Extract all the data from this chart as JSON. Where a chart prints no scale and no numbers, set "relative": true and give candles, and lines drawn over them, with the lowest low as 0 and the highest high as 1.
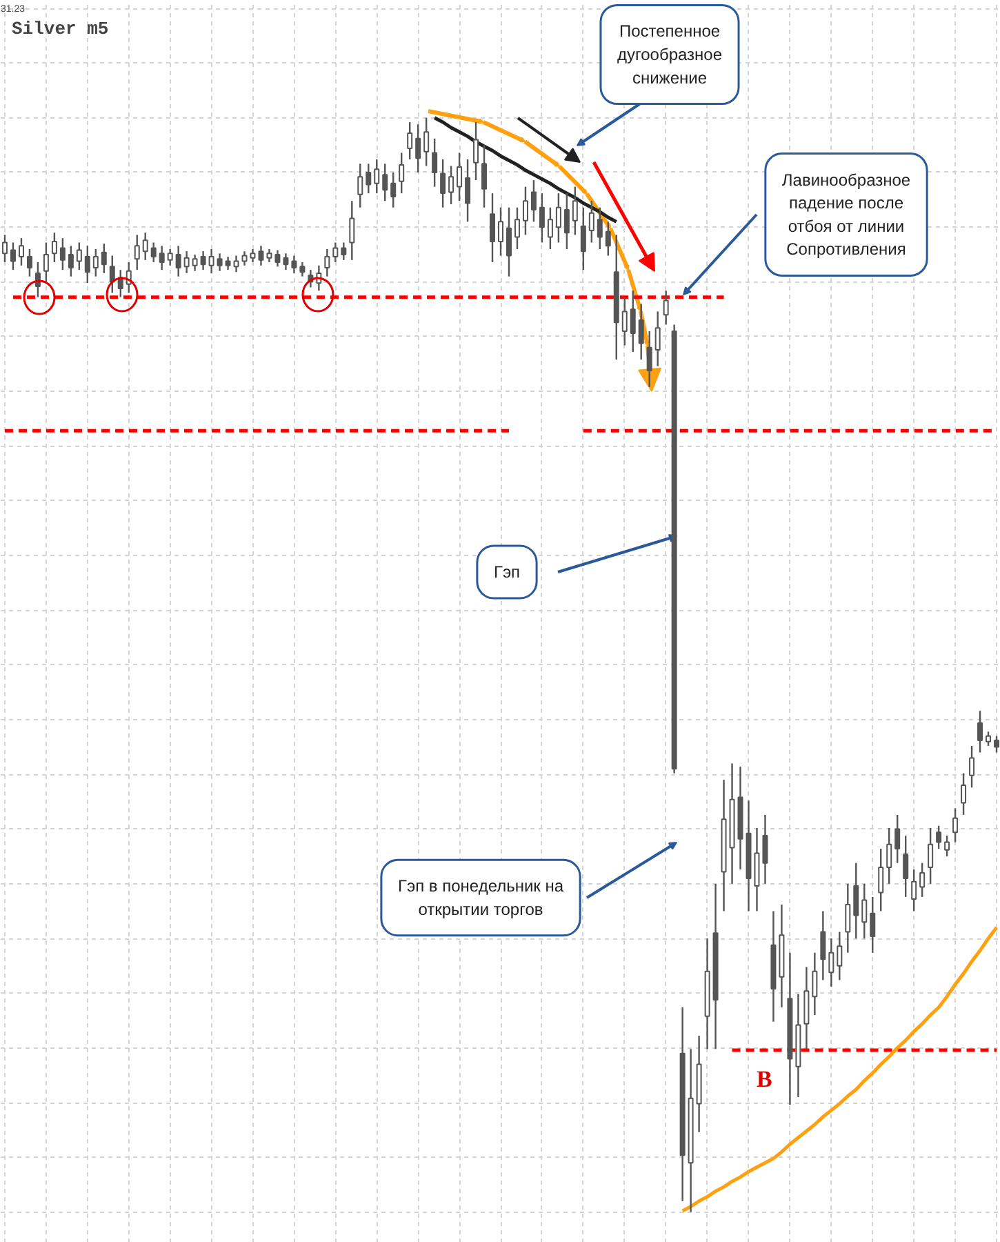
{
  "chart_data": {
    "type": "candlestick",
    "title": "Silver m5",
    "relative": true,
    "grid": true,
    "color": "#555555",
    "annotations": [
      "31.23",
      "Постепенное дугообразное снижение",
      "Лавинообразное падение после отбоя от линии Сопротивления",
      "Гэп",
      "Гэп в понедельник на открытии торгов",
      "B"
    ],
    "categories": [
      null,
      null,
      null,
      null,
      null,
      null,
      null,
      null,
      null,
      null,
      null,
      null,
      null,
      null,
      null,
      null,
      null,
      null,
      null,
      null,
      null,
      null,
      null,
      null,
      null,
      null,
      null,
      null,
      null,
      null,
      null,
      null,
      null,
      null,
      null,
      null,
      null,
      null,
      null,
      null,
      null,
      null,
      null,
      null,
      null,
      null,
      null,
      null,
      null,
      null,
      null,
      null,
      null,
      null,
      null,
      null,
      null,
      null,
      null,
      null,
      null,
      null,
      null,
      null,
      null,
      null,
      null,
      null,
      null,
      null,
      null,
      null,
      null,
      null,
      null,
      null,
      null,
      null,
      null,
      null,
      null,
      null,
      null,
      null,
      null,
      null,
      null,
      null,
      null,
      null,
      null,
      null,
      null,
      null,
      null,
      null,
      null,
      null,
      null,
      null,
      null,
      null,
      null,
      null,
      null,
      null,
      null,
      null,
      null,
      null,
      null,
      null,
      null,
      null,
      null,
      null,
      null,
      null,
      null,
      null,
      null
    ],
    "ohlc": [
      [
        0.876,
        0.893,
        0.868,
        0.886
      ],
      [
        0.879,
        0.886,
        0.861,
        0.869
      ],
      [
        0.873,
        0.89,
        0.865,
        0.883
      ],
      [
        0.873,
        0.88,
        0.855,
        0.863
      ],
      [
        0.858,
        0.868,
        0.836,
        0.846
      ],
      [
        0.86,
        0.886,
        0.849,
        0.875
      ],
      [
        0.876,
        0.895,
        0.868,
        0.887
      ],
      [
        0.881,
        0.89,
        0.861,
        0.87
      ],
      [
        0.875,
        0.883,
        0.855,
        0.863
      ],
      [
        0.869,
        0.886,
        0.861,
        0.879
      ],
      [
        0.873,
        0.883,
        0.849,
        0.859
      ],
      [
        0.863,
        0.88,
        0.855,
        0.873
      ],
      [
        0.877,
        0.885,
        0.858,
        0.866
      ],
      [
        0.864,
        0.874,
        0.84,
        0.85
      ],
      [
        0.854,
        0.861,
        0.836,
        0.844
      ],
      [
        0.848,
        0.868,
        0.84,
        0.86
      ],
      [
        0.871,
        0.893,
        0.861,
        0.883
      ],
      [
        0.878,
        0.895,
        0.87,
        0.888
      ],
      [
        0.881,
        0.886,
        0.868,
        0.873
      ],
      [
        0.876,
        0.883,
        0.861,
        0.868
      ],
      [
        0.87,
        0.88,
        0.865,
        0.876
      ],
      [
        0.875,
        0.883,
        0.855,
        0.863
      ],
      [
        0.864,
        0.878,
        0.858,
        0.872
      ],
      [
        0.865,
        0.875,
        0.86,
        0.871
      ],
      [
        0.873,
        0.878,
        0.861,
        0.866
      ],
      [
        0.865,
        0.88,
        0.858,
        0.873
      ],
      [
        0.871,
        0.876,
        0.86,
        0.865
      ],
      [
        0.869,
        0.873,
        0.861,
        0.865
      ],
      [
        0.864,
        0.874,
        0.859,
        0.869
      ],
      [
        0.869,
        0.878,
        0.865,
        0.874
      ],
      [
        0.872,
        0.88,
        0.868,
        0.876
      ],
      [
        0.878,
        0.883,
        0.865,
        0.87
      ],
      [
        0.872,
        0.88,
        0.868,
        0.876
      ],
      [
        0.875,
        0.879,
        0.864,
        0.868
      ],
      [
        0.872,
        0.876,
        0.861,
        0.866
      ],
      [
        0.869,
        0.874,
        0.858,
        0.863
      ],
      [
        0.864,
        0.868,
        0.855,
        0.859
      ],
      [
        0.856,
        0.861,
        0.845,
        0.85
      ],
      [
        0.849,
        0.865,
        0.842,
        0.858
      ],
      [
        0.863,
        0.88,
        0.855,
        0.873
      ],
      [
        0.873,
        0.886,
        0.868,
        0.881
      ],
      [
        0.881,
        0.886,
        0.87,
        0.875
      ],
      [
        0.886,
        0.924,
        0.87,
        0.908
      ],
      [
        0.93,
        0.958,
        0.918,
        0.946
      ],
      [
        0.95,
        0.958,
        0.931,
        0.939
      ],
      [
        0.94,
        0.962,
        0.931,
        0.953
      ],
      [
        0.948,
        0.958,
        0.924,
        0.934
      ],
      [
        0.94,
        0.95,
        0.918,
        0.928
      ],
      [
        0.942,
        0.968,
        0.931,
        0.957
      ],
      [
        0.972,
        0.996,
        0.962,
        0.986
      ],
      [
        0.981,
        0.994,
        0.95,
        0.963
      ],
      [
        0.969,
        1.0,
        0.956,
        0.987
      ],
      [
        0.968,
        0.981,
        0.937,
        0.95
      ],
      [
        0.949,
        0.962,
        0.918,
        0.931
      ],
      [
        0.932,
        0.956,
        0.921,
        0.946
      ],
      [
        0.937,
        0.968,
        0.924,
        0.955
      ],
      [
        0.945,
        0.962,
        0.905,
        0.922
      ],
      [
        0.959,
        0.996,
        0.943,
        0.98
      ],
      [
        0.958,
        0.975,
        0.918,
        0.935
      ],
      [
        0.912,
        0.931,
        0.868,
        0.887
      ],
      [
        0.887,
        0.918,
        0.874,
        0.905
      ],
      [
        0.899,
        0.918,
        0.855,
        0.874
      ],
      [
        0.891,
        0.918,
        0.88,
        0.907
      ],
      [
        0.906,
        0.937,
        0.893,
        0.924
      ],
      [
        0.932,
        0.943,
        0.905,
        0.916
      ],
      [
        0.918,
        0.931,
        0.886,
        0.9
      ],
      [
        0.891,
        0.918,
        0.88,
        0.907
      ],
      [
        0.9,
        0.931,
        0.886,
        0.918
      ],
      [
        0.916,
        0.931,
        0.88,
        0.895
      ],
      [
        0.906,
        0.937,
        0.893,
        0.924
      ],
      [
        0.901,
        0.918,
        0.861,
        0.878
      ],
      [
        0.897,
        0.924,
        0.886,
        0.913
      ],
      [
        0.907,
        0.918,
        0.88,
        0.891
      ],
      [
        0.896,
        0.905,
        0.874,
        0.883
      ],
      [
        0.859,
        0.893,
        0.779,
        0.813
      ],
      [
        0.805,
        0.836,
        0.792,
        0.823
      ],
      [
        0.825,
        0.842,
        0.786,
        0.803
      ],
      [
        0.815,
        0.83,
        0.779,
        0.794
      ],
      [
        0.79,
        0.805,
        0.754,
        0.769
      ],
      [
        0.788,
        0.823,
        0.773,
        0.808
      ],
      [
        0.82,
        0.842,
        0.811,
        0.833
      ],
      [
        0.805,
        0.811,
        0.401,
        0.405
      ],
      [
        0.145,
        0.187,
        0.01,
        0.052
      ],
      [
        0.045,
        0.149,
        0.0,
        0.104
      ],
      [
        0.099,
        0.161,
        0.073,
        0.135
      ],
      [
        0.179,
        0.25,
        0.149,
        0.22
      ],
      [
        0.255,
        0.3,
        0.149,
        0.194
      ],
      [
        0.311,
        0.395,
        0.275,
        0.359
      ],
      [
        0.333,
        0.41,
        0.3,
        0.377
      ],
      [
        0.379,
        0.407,
        0.313,
        0.341
      ],
      [
        0.346,
        0.376,
        0.275,
        0.305
      ],
      [
        0.298,
        0.351,
        0.275,
        0.328
      ],
      [
        0.344,
        0.363,
        0.3,
        0.319
      ],
      [
        0.244,
        0.275,
        0.174,
        0.204
      ],
      [
        0.215,
        0.281,
        0.187,
        0.253
      ],
      [
        0.195,
        0.237,
        0.098,
        0.14
      ],
      [
        0.133,
        0.199,
        0.105,
        0.171
      ],
      [
        0.172,
        0.224,
        0.149,
        0.202
      ],
      [
        0.197,
        0.237,
        0.18,
        0.22
      ],
      [
        0.256,
        0.275,
        0.212,
        0.231
      ],
      [
        0.219,
        0.25,
        0.206,
        0.237
      ],
      [
        0.225,
        0.256,
        0.212,
        0.243
      ],
      [
        0.256,
        0.3,
        0.237,
        0.281
      ],
      [
        0.298,
        0.319,
        0.25,
        0.271
      ],
      [
        0.265,
        0.3,
        0.25,
        0.285
      ],
      [
        0.273,
        0.288,
        0.237,
        0.252
      ],
      [
        0.292,
        0.332,
        0.275,
        0.315
      ],
      [
        0.315,
        0.351,
        0.3,
        0.336
      ],
      [
        0.35,
        0.363,
        0.319,
        0.332
      ],
      [
        0.327,
        0.344,
        0.288,
        0.305
      ],
      [
        0.286,
        0.313,
        0.275,
        0.302
      ],
      [
        0.297,
        0.319,
        0.288,
        0.31
      ],
      [
        0.315,
        0.351,
        0.3,
        0.336
      ],
      [
        0.347,
        0.353,
        0.332,
        0.338
      ],
      [
        0.331,
        0.344,
        0.325,
        0.338
      ],
      [
        0.347,
        0.369,
        0.338,
        0.36
      ],
      [
        0.374,
        0.401,
        0.363,
        0.39
      ],
      [
        0.399,
        0.426,
        0.388,
        0.415
      ],
      [
        0.447,
        0.458,
        0.42,
        0.431
      ],
      [
        0.43,
        0.439,
        0.426,
        0.435
      ],
      [
        0.431,
        0.435,
        0.42,
        0.425
      ]
    ],
    "series": [
      {
        "type": "line",
        "color": "#ff0000",
        "line_style": "dashed",
        "values": [
          null,
          0.836,
          0.836,
          0.836,
          0.836,
          0.836,
          0.836,
          0.836,
          0.836,
          0.836,
          0.836,
          0.836,
          0.836,
          0.836,
          0.836,
          0.836,
          0.836,
          0.836,
          0.836,
          0.836,
          0.836,
          0.836,
          0.836,
          0.836,
          0.836,
          0.836,
          0.836,
          0.836,
          0.836,
          0.836,
          0.836,
          0.836,
          0.836,
          0.836,
          0.836,
          0.836,
          0.836,
          0.836,
          0.836,
          0.836,
          0.836,
          0.836,
          0.836,
          0.836,
          0.836,
          0.836,
          0.836,
          0.836,
          0.836,
          0.836,
          0.836,
          0.836,
          0.836,
          0.836,
          0.836,
          0.836,
          0.836,
          0.836,
          0.836,
          0.836,
          0.836,
          0.836,
          0.836,
          0.836,
          0.836,
          0.836,
          0.836,
          0.836,
          0.836,
          0.836,
          0.836,
          0.836,
          0.836,
          0.836,
          0.836,
          0.836,
          0.836,
          0.836,
          0.836,
          0.836,
          0.836,
          0.836,
          0.836,
          0.836,
          0.836,
          0.836,
          0.836,
          0.836,
          null,
          null,
          null,
          null,
          null,
          null,
          null,
          null,
          null,
          null,
          null,
          null,
          null,
          null,
          null,
          null,
          null,
          null,
          null,
          null,
          null,
          null,
          null,
          null,
          null,
          null,
          null,
          null,
          null,
          null,
          null,
          null,
          null
        ]
      },
      {
        "type": "line",
        "color": "#ff0000",
        "line_style": "dashed",
        "values": [
          0.714,
          0.714,
          0.714,
          0.714,
          0.714,
          0.714,
          0.714,
          0.714,
          0.714,
          0.714,
          0.714,
          0.714,
          0.714,
          0.714,
          0.714,
          0.714,
          0.714,
          0.714,
          0.714,
          0.714,
          0.714,
          0.714,
          0.714,
          0.714,
          0.714,
          0.714,
          0.714,
          0.714,
          0.714,
          0.714,
          0.714,
          0.714,
          0.714,
          0.714,
          0.714,
          0.714,
          0.714,
          0.714,
          0.714,
          0.714,
          0.714,
          0.714,
          0.714,
          0.714,
          0.714,
          0.714,
          0.714,
          0.714,
          0.714,
          0.714,
          0.714,
          0.714,
          0.714,
          0.714,
          0.714,
          0.714,
          0.714,
          0.714,
          0.714,
          0.714,
          0.714,
          0.714,
          null,
          null,
          null,
          null,
          null,
          null,
          null,
          null,
          0.714,
          0.714,
          0.714,
          0.714,
          0.714,
          0.714,
          0.714,
          0.714,
          0.714,
          0.714,
          0.714,
          0.714,
          0.714,
          0.714,
          0.714,
          0.714,
          0.714,
          0.714,
          0.714,
          0.714,
          0.714,
          0.714,
          0.714,
          0.714,
          0.714,
          0.714,
          0.714,
          0.714,
          0.714,
          0.714,
          0.714,
          0.714,
          0.714,
          0.714,
          0.714,
          0.714,
          0.714,
          0.714,
          0.714,
          0.714,
          0.714,
          0.714,
          0.714,
          0.714,
          0.714,
          0.714,
          0.714,
          0.714,
          0.714,
          0.714,
          0.714
        ]
      },
      {
        "type": "line",
        "color": "#ff0000",
        "line_style": "dashed",
        "values": [
          null,
          null,
          null,
          null,
          null,
          null,
          null,
          null,
          null,
          null,
          null,
          null,
          null,
          null,
          null,
          null,
          null,
          null,
          null,
          null,
          null,
          null,
          null,
          null,
          null,
          null,
          null,
          null,
          null,
          null,
          null,
          null,
          null,
          null,
          null,
          null,
          null,
          null,
          null,
          null,
          null,
          null,
          null,
          null,
          null,
          null,
          null,
          null,
          null,
          null,
          null,
          null,
          null,
          null,
          null,
          null,
          null,
          null,
          null,
          null,
          null,
          null,
          null,
          null,
          null,
          null,
          null,
          null,
          null,
          null,
          null,
          null,
          null,
          null,
          null,
          null,
          null,
          null,
          null,
          null,
          null,
          null,
          null,
          null,
          null,
          null,
          null,
          null,
          0.148,
          0.148,
          0.148,
          0.148,
          0.148,
          0.148,
          0.148,
          0.148,
          0.148,
          0.148,
          0.148,
          0.148,
          0.148,
          0.148,
          0.148,
          0.148,
          0.148,
          0.148,
          0.148,
          0.148,
          0.148,
          0.148,
          0.148,
          0.148,
          0.148,
          0.148,
          0.148,
          0.148,
          0.148,
          0.148,
          0.148,
          0.148,
          0.148
        ]
      },
      {
        "type": "line",
        "color": "#222222",
        "line_style": "solid",
        "values": [
          null,
          null,
          null,
          null,
          null,
          null,
          null,
          null,
          null,
          null,
          null,
          null,
          null,
          null,
          null,
          null,
          null,
          null,
          null,
          null,
          null,
          null,
          null,
          null,
          null,
          null,
          null,
          null,
          null,
          null,
          null,
          null,
          null,
          null,
          null,
          null,
          null,
          null,
          null,
          null,
          null,
          null,
          null,
          null,
          null,
          null,
          null,
          null,
          null,
          null,
          null,
          null,
          1.0,
          0.996,
          0.991,
          0.987,
          0.983,
          0.978,
          0.974,
          0.97,
          0.965,
          0.961,
          0.957,
          0.952,
          0.948,
          0.944,
          0.94,
          0.935,
          0.931,
          0.927,
          0.922,
          0.918,
          0.914,
          0.909,
          0.905,
          null,
          null,
          null,
          null,
          null,
          null,
          null,
          null,
          null,
          null,
          null,
          null,
          null,
          null,
          null,
          null,
          null,
          null,
          null,
          null,
          null,
          null,
          null,
          null,
          null,
          null,
          null,
          null,
          null,
          null,
          null,
          null,
          null,
          null,
          null,
          null,
          null,
          null,
          null,
          null,
          null,
          null,
          null,
          null,
          null,
          null
        ]
      },
      {
        "type": "line",
        "color": "#ffa010",
        "line_style": "solid",
        "values": [
          null,
          null,
          null,
          null,
          null,
          null,
          null,
          null,
          null,
          null,
          null,
          null,
          null,
          null,
          null,
          null,
          null,
          null,
          null,
          null,
          null,
          null,
          null,
          null,
          null,
          null,
          null,
          null,
          null,
          null,
          null,
          null,
          null,
          null,
          null,
          null,
          null,
          null,
          null,
          null,
          null,
          null,
          null,
          null,
          null,
          null,
          null,
          null,
          null,
          null,
          null,
          null,
          null,
          null,
          null,
          null,
          null,
          null,
          null,
          null,
          null,
          null,
          null,
          null,
          null,
          null,
          null,
          null,
          null,
          null,
          null,
          null,
          null,
          null,
          null,
          null,
          null,
          null,
          null,
          null,
          null,
          null,
          0.001,
          0.005,
          0.01,
          0.014,
          0.019,
          0.023,
          0.028,
          0.032,
          0.037,
          0.041,
          0.045,
          0.049,
          0.055,
          0.062,
          0.068,
          0.074,
          0.08,
          0.087,
          0.093,
          0.099,
          0.106,
          0.112,
          0.12,
          0.127,
          0.135,
          0.142,
          0.15,
          0.157,
          0.165,
          0.172,
          0.18,
          0.187,
          0.197,
          0.208,
          0.218,
          0.229,
          0.239,
          0.25,
          0.26
        ]
      }
    ]
  }
}
